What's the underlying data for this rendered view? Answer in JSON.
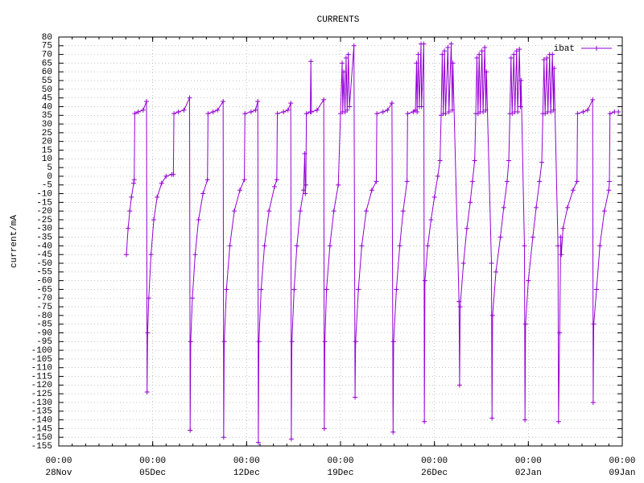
{
  "chart_data": {
    "type": "line",
    "title": "CURRENTS",
    "y_label": "current/mA",
    "grid": true,
    "legend": "top-right",
    "xlim": [
      "28Nov 00:00",
      "09Jan 00:00"
    ],
    "xticks": [
      {
        "value": "28Nov 00:00",
        "label": [
          "00:00",
          "28Nov"
        ]
      },
      {
        "value": "05Dec 00:00",
        "label": [
          "00:00",
          "05Dec"
        ]
      },
      {
        "value": "12Dec 00:00",
        "label": [
          "00:00",
          "12Dec"
        ]
      },
      {
        "value": "19Dec 00:00",
        "label": [
          "00:00",
          "19Dec"
        ]
      },
      {
        "value": "26Dec 00:00",
        "label": [
          "00:00",
          "26Dec"
        ]
      },
      {
        "value": "02Jan 00:00",
        "label": [
          "00:00",
          "02Jan"
        ]
      },
      {
        "value": "09Jan 00:00",
        "label": [
          "00:00",
          "09Jan"
        ]
      }
    ],
    "ylim": [
      -155,
      80
    ],
    "yticks": [
      80,
      75,
      70,
      65,
      60,
      55,
      50,
      45,
      40,
      35,
      30,
      25,
      20,
      15,
      10,
      5,
      0,
      -5,
      -10,
      -15,
      -20,
      -25,
      -30,
      -35,
      -40,
      -45,
      -50,
      -55,
      -60,
      -65,
      -70,
      -75,
      -80,
      -85,
      -90,
      -95,
      -100,
      -105,
      -110,
      -115,
      -120,
      -125,
      -130,
      -135,
      -140,
      -145,
      -150,
      -155
    ],
    "x": [
      "03Dec 01:00",
      "03Dec 04:00",
      "03Dec 07:00",
      "03Dec 10:00",
      "03Dec 14:00",
      "03Dec 15:00",
      "03Dec 16:00",
      "03Dec 22:00",
      "04Dec 07:00",
      "04Dec 13:00",
      "04Dec 14:00",
      "04Dec 15:00",
      "04Dec 17:00",
      "04Dec 21:00",
      "05Dec 02:00",
      "05Dec 08:00",
      "05Dec 16:00",
      "06Dec 00:00",
      "06Dec 10:00",
      "06Dec 13:00",
      "06Dec 14:00",
      "06Dec 22:00",
      "07Dec 08:00",
      "07Dec 18:00",
      "07Dec 19:00",
      "07Dec 20:00",
      "07Dec 23:00",
      "08Dec 04:00",
      "08Dec 10:00",
      "08Dec 18:00",
      "09Dec 02:00",
      "09Dec 03:00",
      "09Dec 12:00",
      "09Dec 20:00",
      "10Dec 06:00",
      "10Dec 07:00",
      "10Dec 08:00",
      "10Dec 12:00",
      "10Dec 18:00",
      "11Dec 02:00",
      "11Dec 12:00",
      "11Dec 20:00",
      "11Dec 21:00",
      "12Dec 08:00",
      "12Dec 16:00",
      "12Dec 20:00",
      "12Dec 21:00",
      "12Dec 22:00",
      "13Dec 02:00",
      "13Dec 08:00",
      "13Dec 16:00",
      "14Dec 02:00",
      "14Dec 06:00",
      "14Dec 07:00",
      "14Dec 18:00",
      "15Dec 02:00",
      "15Dec 07:00",
      "15Dec 08:00",
      "15Dec 09:00",
      "15Dec 13:00",
      "15Dec 18:00",
      "16Dec 00:00",
      "16Dec 06:00",
      "16Dec 08:00",
      "16Dec 09:00",
      "16Dec 10:00",
      "16Dec 11:00",
      "16Dec 18:00",
      "16Dec 19:00",
      "16Dec 20:00",
      "17Dec 06:00",
      "17Dec 18:00",
      "17Dec 19:00",
      "17Dec 20:00",
      "17Dec 23:00",
      "18Dec 05:00",
      "18Dec 12:00",
      "18Dec 20:00",
      "19Dec 00:00",
      "19Dec 03:00",
      "19Dec 04:00",
      "19Dec 06:00",
      "19Dec 08:00",
      "19Dec 10:00",
      "19Dec 12:00",
      "19Dec 14:00",
      "19Dec 16:00",
      "20Dec 00:00",
      "20Dec 02:00",
      "20Dec 03:00",
      "20Dec 08:00",
      "20Dec 14:00",
      "20Dec 22:00",
      "21Dec 08:00",
      "21Dec 16:00",
      "21Dec 17:00",
      "22Dec 04:00",
      "22Dec 12:00",
      "22Dec 20:00",
      "22Dec 22:00",
      "22Dec 23:00",
      "23Dec 04:00",
      "23Dec 10:00",
      "23Dec 16:00",
      "23Dec 23:00",
      "24Dec 00:00",
      "24Dec 10:00",
      "24Dec 14:00",
      "24Dec 16:00",
      "24Dec 17:00",
      "24Dec 19:00",
      "24Dec 21:00",
      "25Dec 00:00",
      "25Dec 01:00",
      "25Dec 05:00",
      "25Dec 06:00",
      "25Dec 07:00",
      "25Dec 12:00",
      "25Dec 18:00",
      "26Dec 00:00",
      "26Dec 06:00",
      "26Dec 10:00",
      "26Dec 12:00",
      "26Dec 14:00",
      "26Dec 16:00",
      "26Dec 18:00",
      "26Dec 20:00",
      "27Dec 00:00",
      "27Dec 02:00",
      "27Dec 06:00",
      "27Dec 08:00",
      "27Dec 09:00",
      "27Dec 20:00",
      "27Dec 21:00",
      "27Dec 22:00",
      "28Dec 04:00",
      "28Dec 10:00",
      "28Dec 16:00",
      "28Dec 20:00",
      "29Dec 00:00",
      "29Dec 02:00",
      "29Dec 04:00",
      "29Dec 06:00",
      "29Dec 08:00",
      "29Dec 10:00",
      "29Dec 13:00",
      "29Dec 15:00",
      "29Dec 18:00",
      "29Dec 20:00",
      "29Dec 21:00",
      "30Dec 06:00",
      "30Dec 07:00",
      "30Dec 08:00",
      "30Dec 14:00",
      "30Dec 22:00",
      "31Dec 04:00",
      "31Dec 10:00",
      "31Dec 13:00",
      "31Dec 15:00",
      "31Dec 17:00",
      "31Dec 19:00",
      "31Dec 22:00",
      "01Jan 00:00",
      "01Jan 03:00",
      "01Jan 05:00",
      "01Jan 08:00",
      "01Jan 10:00",
      "01Jan 11:00",
      "01Jan 17:00",
      "01Jan 18:00",
      "01Jan 19:00",
      "02Jan 00:00",
      "02Jan 08:00",
      "02Jan 14:00",
      "02Jan 20:00",
      "03Jan 00:00",
      "03Jan 02:00",
      "03Jan 04:00",
      "03Jan 06:00",
      "03Jan 09:00",
      "03Jan 11:00",
      "03Jan 14:00",
      "03Jan 16:00",
      "03Jan 19:00",
      "03Jan 21:00",
      "03Jan 22:00",
      "04Jan 05:00",
      "04Jan 06:00",
      "04Jan 08:00",
      "04Jan 10:00",
      "04Jan 11:00",
      "04Jan 14:00",
      "04Jan 22:00",
      "05Jan 08:00",
      "05Jan 15:00",
      "05Jan 16:00",
      "06Jan 02:00",
      "06Jan 10:00",
      "06Jan 19:00",
      "06Jan 20:00",
      "06Jan 21:00",
      "07Jan 02:00",
      "07Jan 08:00",
      "07Jan 16:00",
      "08Jan 00:00",
      "08Jan 01:00",
      "08Jan 02:00",
      "08Jan 10:00",
      "08Jan 17:00"
    ],
    "series": [
      {
        "name": "ibat",
        "color": "#9400d3",
        "values": [
          -45,
          -30,
          -20,
          -12,
          -4,
          -2,
          36,
          37,
          38,
          43,
          -124,
          -90,
          -70,
          -45,
          -25,
          -12,
          -4,
          0,
          1,
          1,
          36,
          37,
          38,
          45,
          -146,
          -95,
          -70,
          -45,
          -25,
          -10,
          -2,
          36,
          37,
          38,
          43,
          -150,
          -95,
          -65,
          -40,
          -20,
          -8,
          -2,
          36,
          37,
          38,
          43,
          -153,
          -95,
          -65,
          -40,
          -20,
          -6,
          -2,
          36,
          37,
          38,
          42,
          -151,
          -95,
          -65,
          -40,
          -20,
          -8,
          13,
          -10,
          -5,
          36,
          37,
          66,
          37,
          38,
          44,
          -145,
          -95,
          -65,
          -40,
          -20,
          -5,
          36,
          65,
          37,
          60,
          37,
          68,
          38,
          70,
          40,
          75,
          -127,
          -95,
          -65,
          -40,
          -20,
          -8,
          -3,
          36,
          37,
          38,
          42,
          -147,
          -95,
          -65,
          -40,
          -20,
          -3,
          36,
          37,
          38,
          65,
          37,
          70,
          40,
          76,
          40,
          76,
          -141,
          -60,
          -40,
          -25,
          -12,
          0,
          9,
          35,
          70,
          36,
          72,
          36,
          74,
          37,
          76,
          38,
          65,
          -72,
          -120,
          -75,
          -50,
          -30,
          -15,
          -3,
          9,
          36,
          68,
          36,
          70,
          37,
          72,
          37,
          74,
          38,
          60,
          -50,
          -139,
          -80,
          -55,
          -35,
          -18,
          -3,
          9,
          36,
          68,
          36,
          70,
          37,
          72,
          37,
          73,
          40,
          55,
          -40,
          -140,
          -85,
          -60,
          -35,
          -18,
          -3,
          8,
          36,
          67,
          36,
          68,
          37,
          70,
          37,
          70,
          38,
          62,
          -40,
          -141,
          -90,
          -35,
          -45,
          -30,
          -18,
          -8,
          -3,
          36,
          37,
          38,
          44,
          -130,
          -85,
          -65,
          -40,
          -20,
          -8,
          -3,
          36,
          37,
          37
        ]
      }
    ]
  }
}
